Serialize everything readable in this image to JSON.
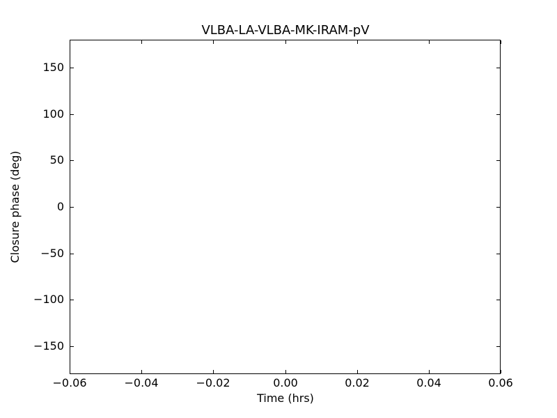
{
  "chart_data": {
    "type": "scatter",
    "title": "VLBA-LA-VLBA-MK-IRAM-pV",
    "xlabel": "Time (hrs)",
    "ylabel": "Closure phase (deg)",
    "xlim": [
      -0.06,
      0.06
    ],
    "ylim": [
      -180,
      180
    ],
    "xticks": {
      "values": [
        -0.06,
        -0.04,
        -0.02,
        0.0,
        0.02,
        0.04,
        0.06
      ],
      "labels": [
        "−0.06",
        "−0.04",
        "−0.02",
        "0.00",
        "0.02",
        "0.04",
        "0.06"
      ]
    },
    "yticks": {
      "values": [
        150,
        100,
        50,
        0,
        -50,
        -100,
        -150
      ],
      "labels": [
        "150",
        "100",
        "50",
        "0",
        "−50",
        "−100",
        "−150"
      ]
    },
    "series": [],
    "grid": false,
    "legend": null,
    "colors": {
      "background": "#ffffff",
      "spine": "#000000",
      "text": "#000000"
    }
  }
}
